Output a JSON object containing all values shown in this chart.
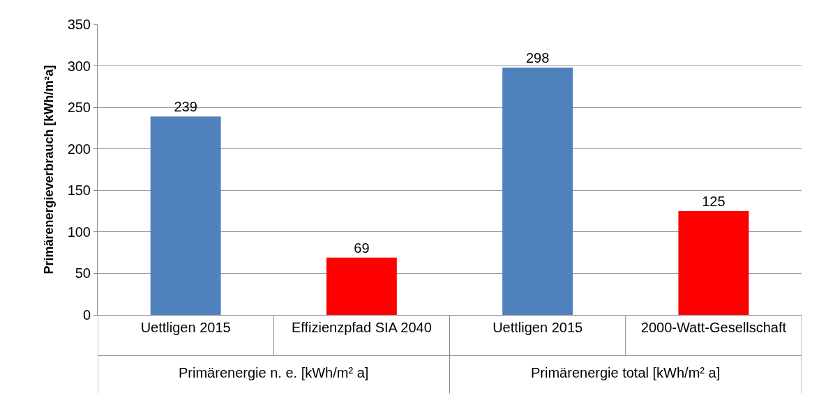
{
  "chart_data": {
    "type": "bar",
    "ylabel": "Primärenergieverbrauch [kWh/m²a]",
    "categories": [
      "Uettligen 2015",
      "Effizienzpfad SIA 2040",
      "Uettligen 2015",
      "2000-Watt-Gesellschaft"
    ],
    "values": [
      239,
      69,
      298,
      125
    ],
    "colors": [
      "#4f81bd",
      "#ff0000",
      "#4f81bd",
      "#ff0000"
    ],
    "ylim": [
      0,
      350
    ],
    "yticks": [
      0,
      50,
      100,
      150,
      200,
      250,
      300,
      350
    ],
    "grid": "y",
    "data_labels": true,
    "annotations": [
      "Primärenergie n. e. [kWh/m² a]",
      "Primärenergie total [kWh/m² a]"
    ]
  }
}
